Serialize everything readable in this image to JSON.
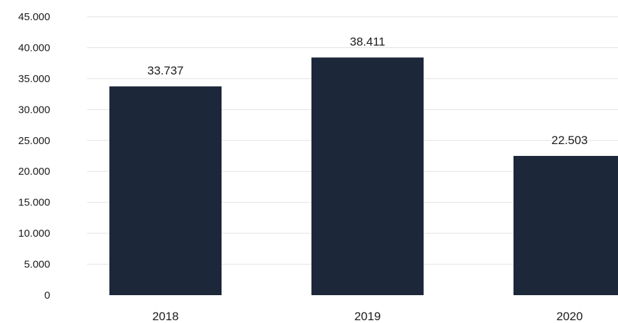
{
  "chart_data": {
    "type": "bar",
    "title": "",
    "xlabel": "",
    "ylabel": "",
    "categories": [
      "2018",
      "2019",
      "2020"
    ],
    "values": [
      33737,
      38411,
      22503
    ],
    "data_labels": [
      "33.737",
      "38.411",
      "22.503"
    ],
    "ylim": [
      0,
      45000
    ],
    "yticks": [
      0,
      5000,
      10000,
      15000,
      20000,
      25000,
      30000,
      35000,
      40000,
      45000
    ],
    "ytick_labels": [
      "0",
      "5.000",
      "10.000",
      "15.000",
      "20.000",
      "25.000",
      "30.000",
      "35.000",
      "40.000",
      "45.000"
    ],
    "grid": true,
    "bar_color": "#1c2739",
    "legend": "none"
  }
}
